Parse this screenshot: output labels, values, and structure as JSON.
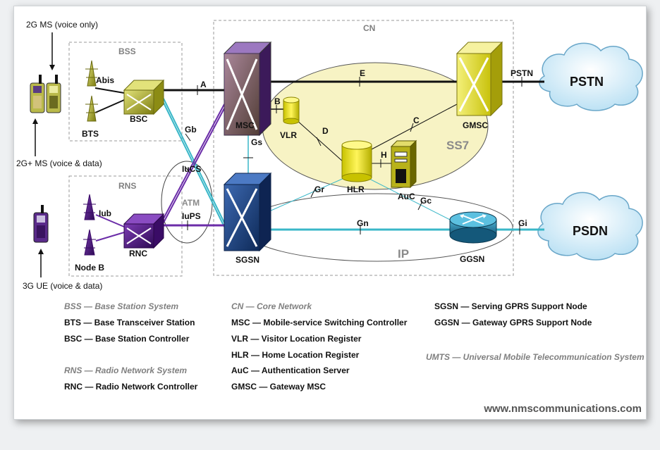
{
  "ms_labels": {
    "ms_2g": "2G MS (voice only)",
    "ms_2g_plus": "2G+ MS (voice & data)",
    "ue_3g": "3G UE (voice & data)"
  },
  "regions": {
    "bss": "BSS",
    "rns": "RNS",
    "cn": "CN",
    "ss7": "SS7",
    "ip": "IP",
    "atm": "ATM"
  },
  "nodes": {
    "bts": "BTS",
    "bsc": "BSC",
    "node_b": "Node B",
    "rnc": "RNC",
    "msc": "MSC",
    "vlr": "VLR",
    "hlr": "HLR",
    "auc": "AuC",
    "gmsc": "GMSC",
    "sgsn": "SGSN",
    "ggsn": "GGSN",
    "pstn": "PSTN",
    "psdn": "PSDN"
  },
  "interfaces": {
    "abis": "Abis",
    "iub": "Iub",
    "a": "A",
    "b": "B",
    "c": "C",
    "d": "D",
    "e": "E",
    "h": "H",
    "gb": "Gb",
    "gs": "Gs",
    "gr": "Gr",
    "gc": "Gc",
    "gn": "Gn",
    "gi": "Gi",
    "iucs": "IuCS",
    "iups": "IuPS",
    "pstn_if": "PSTN"
  },
  "legend": {
    "bss": "BSS — Base Station System",
    "bts": "BTS — Base Transceiver Station",
    "bsc": "BSC — Base Station Controller",
    "rns": "RNS — Radio Network System",
    "rnc": "RNC — Radio Network Controller",
    "cn": "CN — Core Network",
    "msc": "MSC — Mobile-service Switching Controller",
    "vlr": "VLR — Visitor Location Register",
    "hlr": "HLR — Home Location Register",
    "auc": "AuC — Authentication Server",
    "gmsc": "GMSC — Gateway MSC",
    "sgsn": "SGSN — Serving GPRS Support Node",
    "ggsn": "GGSN — Gateway GPRS Support Node",
    "umts": "UMTS — Universal Mobile Telecommunication System"
  },
  "website": "www.nmscommunications.com",
  "colors": {
    "olive": "#9c9c24",
    "purple": "#5b1f8f",
    "teal": "#3ab7c8",
    "navy": "#1c3f7a",
    "ss7_fill": "#f7f3c4"
  }
}
